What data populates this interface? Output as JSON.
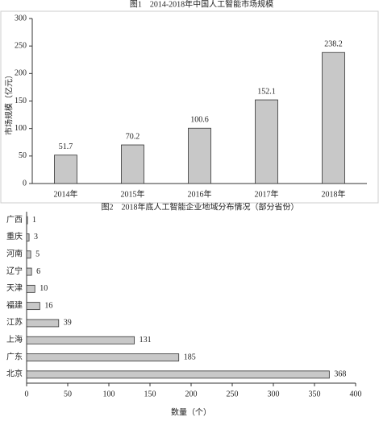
{
  "chart_data": [
    {
      "type": "bar",
      "orientation": "vertical",
      "title": "图1　2014-2018年中国人工智能市场规模",
      "ylabel": "市场规模（亿元）",
      "categories": [
        "2014年",
        "2015年",
        "2016年",
        "2017年",
        "2018年"
      ],
      "values": [
        51.7,
        70.2,
        100.6,
        152.1,
        238.2
      ],
      "color": "#c8c8c8",
      "ylim": [
        0,
        300
      ],
      "yticks": [
        0,
        50,
        100,
        150,
        200,
        250,
        300
      ],
      "grid": false
    },
    {
      "type": "bar",
      "orientation": "horizontal",
      "title": "图2　2018年底人工智能企业地域分布情况（部分省份）",
      "xlabel": "数量（个）",
      "categories": [
        "广西",
        "重庆",
        "河南",
        "辽宁",
        "天津",
        "福建",
        "江苏",
        "上海",
        "广东",
        "北京"
      ],
      "values": [
        1,
        3,
        5,
        6,
        10,
        16,
        39,
        131,
        185,
        368
      ],
      "color": "#c8c8c8",
      "xlim": [
        0,
        400
      ],
      "xticks": [
        0,
        50,
        100,
        150,
        200,
        250,
        300,
        350,
        400
      ],
      "grid": false
    }
  ]
}
